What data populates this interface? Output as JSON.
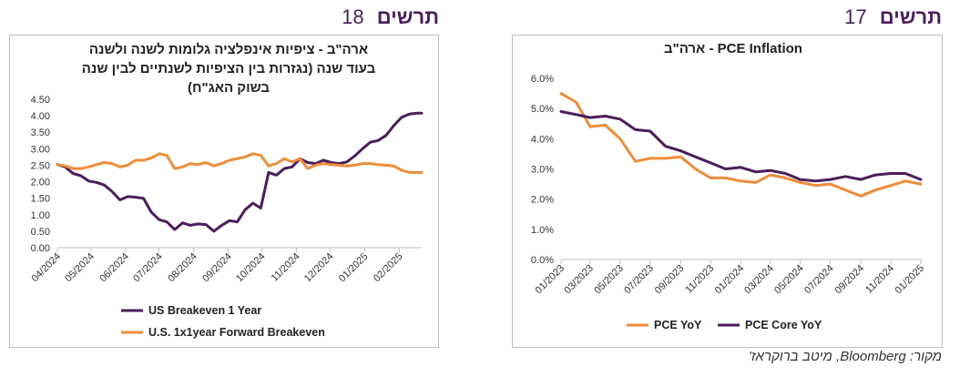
{
  "figures": {
    "left": {
      "label": "תרשים",
      "number": "18"
    },
    "right": {
      "label": "תרשים",
      "number": "17"
    }
  },
  "source_note": "מקור: Bloomberg, מיטב ברוקראז'",
  "colors": {
    "orange": "#ee8d3b",
    "purple": "#4b1d5a",
    "axis": "#bfbfbf",
    "text": "#333333"
  },
  "chart_data": [
    {
      "type": "line",
      "title_lines": [
        "ארה\"ב - ציפיות אינפלציה גלומות לשנה ולשנה",
        "בעוד שנה (נגזרות בין הציפיות לשנתיים לבין שנה",
        "בשוק האג\"ח)"
      ],
      "ylim": [
        0,
        4.5
      ],
      "yticks": [
        "0.00",
        "0.50",
        "1.00",
        "1.50",
        "2.00",
        "2.50",
        "3.00",
        "3.50",
        "4.00",
        "4.50"
      ],
      "xrange": [
        "2024-04-01",
        "2025-02-21"
      ],
      "xticks": [
        {
          "label": "04/2024",
          "date": "2024-04-01"
        },
        {
          "label": "05/2024",
          "date": "2024-05-01"
        },
        {
          "label": "06/2024",
          "date": "2024-06-01"
        },
        {
          "label": "07/2024",
          "date": "2024-07-01"
        },
        {
          "label": "08/2024",
          "date": "2024-08-01"
        },
        {
          "label": "09/2024",
          "date": "2024-09-01"
        },
        {
          "label": "10/2024",
          "date": "2024-10-01"
        },
        {
          "label": "11/2024",
          "date": "2024-11-01"
        },
        {
          "label": "12/2024",
          "date": "2024-12-01"
        },
        {
          "label": "01/2025",
          "date": "2025-01-01"
        },
        {
          "label": "02/2025",
          "date": "2025-02-01"
        }
      ],
      "legend_position": "bottom",
      "series": [
        {
          "name": "US Breakeven 1 Year",
          "color": "#4b1d5a",
          "x": [
            "2024-04-01",
            "2024-04-08",
            "2024-04-15",
            "2024-04-22",
            "2024-04-29",
            "2024-05-06",
            "2024-05-13",
            "2024-05-20",
            "2024-05-27",
            "2024-06-03",
            "2024-06-10",
            "2024-06-17",
            "2024-06-24",
            "2024-07-01",
            "2024-07-08",
            "2024-07-15",
            "2024-07-22",
            "2024-07-29",
            "2024-08-05",
            "2024-08-12",
            "2024-08-19",
            "2024-08-26",
            "2024-09-02",
            "2024-09-09",
            "2024-09-16",
            "2024-09-23",
            "2024-09-30",
            "2024-10-07",
            "2024-10-14",
            "2024-10-21",
            "2024-10-28",
            "2024-11-04",
            "2024-11-11",
            "2024-11-18",
            "2024-11-25",
            "2024-12-02",
            "2024-12-09",
            "2024-12-16",
            "2024-12-23",
            "2024-12-30",
            "2025-01-06",
            "2025-01-13",
            "2025-01-20",
            "2025-01-27",
            "2025-02-03",
            "2025-02-10",
            "2025-02-17",
            "2025-02-21"
          ],
          "y": [
            2.52,
            2.45,
            2.25,
            2.18,
            2.02,
            1.98,
            1.9,
            1.7,
            1.45,
            1.55,
            1.53,
            1.5,
            1.08,
            0.85,
            0.78,
            0.55,
            0.75,
            0.68,
            0.72,
            0.7,
            0.5,
            0.68,
            0.82,
            0.78,
            1.15,
            1.35,
            1.2,
            2.28,
            2.2,
            2.4,
            2.45,
            2.7,
            2.58,
            2.55,
            2.65,
            2.58,
            2.55,
            2.6,
            2.78,
            3.0,
            3.2,
            3.25,
            3.4,
            3.7,
            3.95,
            4.05,
            4.08,
            4.08
          ]
        },
        {
          "name": "U.S. 1x1year Forward Breakeven",
          "color": "#ee8d3b",
          "x": [
            "2024-04-01",
            "2024-04-08",
            "2024-04-15",
            "2024-04-22",
            "2024-04-29",
            "2024-05-06",
            "2024-05-13",
            "2024-05-20",
            "2024-05-27",
            "2024-06-03",
            "2024-06-10",
            "2024-06-17",
            "2024-06-24",
            "2024-07-01",
            "2024-07-08",
            "2024-07-15",
            "2024-07-22",
            "2024-07-29",
            "2024-08-05",
            "2024-08-12",
            "2024-08-19",
            "2024-08-26",
            "2024-09-02",
            "2024-09-09",
            "2024-09-16",
            "2024-09-23",
            "2024-09-30",
            "2024-10-07",
            "2024-10-14",
            "2024-10-21",
            "2024-10-28",
            "2024-11-04",
            "2024-11-11",
            "2024-11-18",
            "2024-11-25",
            "2024-12-02",
            "2024-12-09",
            "2024-12-16",
            "2024-12-23",
            "2024-12-30",
            "2025-01-06",
            "2025-01-13",
            "2025-01-20",
            "2025-01-27",
            "2025-02-03",
            "2025-02-10",
            "2025-02-17",
            "2025-02-21"
          ],
          "y": [
            2.52,
            2.48,
            2.4,
            2.4,
            2.45,
            2.52,
            2.58,
            2.55,
            2.45,
            2.5,
            2.65,
            2.65,
            2.72,
            2.85,
            2.8,
            2.4,
            2.45,
            2.55,
            2.52,
            2.58,
            2.48,
            2.55,
            2.65,
            2.7,
            2.75,
            2.85,
            2.8,
            2.48,
            2.55,
            2.7,
            2.6,
            2.7,
            2.4,
            2.5,
            2.55,
            2.52,
            2.5,
            2.48,
            2.5,
            2.55,
            2.55,
            2.52,
            2.5,
            2.48,
            2.35,
            2.28,
            2.28,
            2.28
          ]
        }
      ]
    },
    {
      "type": "line",
      "title": "PCE Inflation - ארה\"ב",
      "ylim": [
        0,
        6
      ],
      "yticks": [
        "0.0%",
        "1.0%",
        "2.0%",
        "3.0%",
        "4.0%",
        "5.0%",
        "6.0%"
      ],
      "xrange": [
        "2023-01",
        "2025-01"
      ],
      "xticks": [
        {
          "label": "01/2023",
          "date": "2023-01"
        },
        {
          "label": "03/2023",
          "date": "2023-03"
        },
        {
          "label": "05/2023",
          "date": "2023-05"
        },
        {
          "label": "07/2023",
          "date": "2023-07"
        },
        {
          "label": "09/2023",
          "date": "2023-09"
        },
        {
          "label": "11/2023",
          "date": "2023-11"
        },
        {
          "label": "01/2024",
          "date": "2024-01"
        },
        {
          "label": "03/2024",
          "date": "2024-03"
        },
        {
          "label": "05/2024",
          "date": "2024-05"
        },
        {
          "label": "07/2024",
          "date": "2024-07"
        },
        {
          "label": "09/2024",
          "date": "2024-09"
        },
        {
          "label": "11/2024",
          "date": "2024-11"
        },
        {
          "label": "01/2025",
          "date": "2025-01"
        }
      ],
      "legend_position": "bottom",
      "series": [
        {
          "name": "PCE YoY",
          "color": "#ee8d3b",
          "x": [
            "2023-01",
            "2023-02",
            "2023-03",
            "2023-04",
            "2023-05",
            "2023-06",
            "2023-07",
            "2023-08",
            "2023-09",
            "2023-10",
            "2023-11",
            "2023-12",
            "2024-01",
            "2024-02",
            "2024-03",
            "2024-04",
            "2024-05",
            "2024-06",
            "2024-07",
            "2024-08",
            "2024-09",
            "2024-10",
            "2024-11",
            "2024-12",
            "2025-01"
          ],
          "y": [
            5.5,
            5.2,
            4.4,
            4.45,
            4.0,
            3.25,
            3.35,
            3.35,
            3.4,
            3.0,
            2.7,
            2.7,
            2.6,
            2.55,
            2.8,
            2.7,
            2.55,
            2.45,
            2.5,
            2.3,
            2.1,
            2.3,
            2.45,
            2.6,
            2.5
          ]
        },
        {
          "name": "PCE Core YoY",
          "color": "#4b1d5a",
          "x": [
            "2023-01",
            "2023-02",
            "2023-03",
            "2023-04",
            "2023-05",
            "2023-06",
            "2023-07",
            "2023-08",
            "2023-09",
            "2023-10",
            "2023-11",
            "2023-12",
            "2024-01",
            "2024-02",
            "2024-03",
            "2024-04",
            "2024-05",
            "2024-06",
            "2024-07",
            "2024-08",
            "2024-09",
            "2024-10",
            "2024-11",
            "2024-12",
            "2025-01"
          ],
          "y": [
            4.9,
            4.8,
            4.7,
            4.75,
            4.65,
            4.3,
            4.25,
            3.75,
            3.6,
            3.4,
            3.2,
            3.0,
            3.05,
            2.9,
            2.95,
            2.85,
            2.65,
            2.6,
            2.65,
            2.75,
            2.65,
            2.8,
            2.85,
            2.85,
            2.65
          ]
        }
      ]
    }
  ]
}
